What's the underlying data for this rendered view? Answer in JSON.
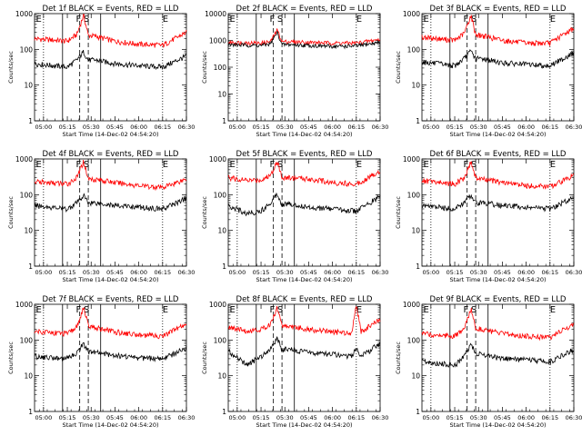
{
  "chart_data": [
    {
      "type": "line",
      "title": "Det 1f BLACK = Events, RED = LLD",
      "xlabel": "Start Time (14-Dec-02 04:54:20)",
      "ylabel": "Counts/sec",
      "yscale": "log",
      "ylim": [
        1,
        1000
      ],
      "yticklabels": [
        "1",
        "10",
        "100",
        "1000"
      ],
      "xticklabels": [
        "05:00",
        "05:15",
        "05:30",
        "05:45",
        "06:00",
        "06:15",
        "06:30"
      ],
      "markers": [
        "E",
        "F",
        "S",
        "E"
      ],
      "series": [
        {
          "key": "red",
          "color": "#ff0000",
          "x_hours": [
            4.906,
            5.25,
            5.35,
            5.42,
            5.47,
            5.55,
            5.75,
            6.0,
            6.25,
            6.5
          ],
          "y": [
            200,
            170,
            260,
            900,
            250,
            230,
            170,
            140,
            130,
            300
          ]
        },
        {
          "key": "black",
          "color": "#000000",
          "x_hours": [
            4.906,
            5.25,
            5.35,
            5.42,
            5.47,
            5.55,
            5.75,
            6.0,
            6.25,
            6.5
          ],
          "y": [
            40,
            32,
            50,
            85,
            50,
            50,
            40,
            35,
            32,
            65
          ]
        }
      ]
    },
    {
      "type": "line",
      "title": "Det 2f BLACK = Events, RED = LLD",
      "xlabel": "Start Time (14-Dec-02 04:54:20)",
      "ylabel": "Counts/sec",
      "yscale": "log",
      "ylim": [
        1,
        10000
      ],
      "yticklabels": [
        "1",
        "10",
        "100",
        "1000",
        "10000"
      ],
      "xticklabels": [
        "05:00",
        "05:15",
        "05:30",
        "05:45",
        "06:00",
        "06:15",
        "06:30"
      ],
      "markers": [
        "E",
        "F",
        "S",
        "E"
      ],
      "series": [
        {
          "key": "red",
          "color": "#ff0000",
          "x_hours": [
            4.906,
            5.25,
            5.35,
            5.42,
            5.47,
            5.55,
            5.75,
            6.0,
            6.25,
            6.5
          ],
          "y": [
            850,
            800,
            900,
            2500,
            900,
            900,
            850,
            800,
            800,
            1100
          ]
        },
        {
          "key": "black",
          "color": "#000000",
          "x_hours": [
            4.906,
            5.25,
            5.35,
            5.42,
            5.47,
            5.55,
            5.75,
            6.0,
            6.25,
            6.5
          ],
          "y": [
            700,
            650,
            750,
            2000,
            700,
            700,
            650,
            600,
            620,
            850
          ]
        }
      ]
    },
    {
      "type": "line",
      "title": "Det 3f BLACK = Events, RED = LLD",
      "xlabel": "Start Time (14-Dec-02 04:54:20)",
      "ylabel": "Counts/sec",
      "yscale": "log",
      "ylim": [
        1,
        1000
      ],
      "yticklabels": [
        "1",
        "10",
        "100",
        "1000"
      ],
      "xticklabels": [
        "05:00",
        "05:15",
        "05:30",
        "05:45",
        "06:00",
        "06:15",
        "06:30"
      ],
      "markers": [
        "E",
        "F",
        "S",
        "E"
      ],
      "series": [
        {
          "key": "red",
          "color": "#ff0000",
          "x_hours": [
            4.906,
            5.25,
            5.35,
            5.42,
            5.47,
            5.55,
            5.75,
            6.0,
            6.25,
            6.5
          ],
          "y": [
            220,
            180,
            280,
            900,
            260,
            240,
            180,
            150,
            150,
            400
          ]
        },
        {
          "key": "black",
          "color": "#000000",
          "x_hours": [
            4.906,
            5.25,
            5.35,
            5.42,
            5.47,
            5.55,
            5.75,
            6.0,
            6.25,
            6.5
          ],
          "y": [
            45,
            35,
            55,
            90,
            55,
            55,
            42,
            38,
            35,
            80
          ]
        }
      ]
    },
    {
      "type": "line",
      "title": "Det 4f BLACK = Events, RED = LLD",
      "xlabel": "Start Time (14-Dec-02 04:54:20)",
      "ylabel": "Counts/sec",
      "yscale": "log",
      "ylim": [
        1,
        1000
      ],
      "yticklabels": [
        "1",
        "10",
        "100",
        "1000"
      ],
      "xticklabels": [
        "05:00",
        "05:15",
        "05:30",
        "05:45",
        "06:00",
        "06:15",
        "06:30"
      ],
      "markers": [
        "E",
        "F",
        "S",
        "E"
      ],
      "series": [
        {
          "key": "red",
          "color": "#ff0000",
          "x_hours": [
            4.906,
            5.25,
            5.35,
            5.42,
            5.47,
            5.55,
            5.75,
            6.0,
            6.25,
            6.5
          ],
          "y": [
            230,
            200,
            300,
            850,
            280,
            270,
            220,
            180,
            160,
            280
          ]
        },
        {
          "key": "black",
          "color": "#000000",
          "x_hours": [
            4.906,
            5.25,
            5.35,
            5.42,
            5.47,
            5.55,
            5.75,
            6.0,
            6.25,
            6.5
          ],
          "y": [
            50,
            40,
            60,
            95,
            60,
            60,
            50,
            45,
            40,
            80
          ]
        }
      ]
    },
    {
      "type": "line",
      "title": "Det 5f BLACK = Events, RED = LLD",
      "xlabel": "Start Time (14-Dec-02 04:54:20)",
      "ylabel": "Counts/sec",
      "yscale": "log",
      "ylim": [
        1,
        1000
      ],
      "yticklabels": [
        "1",
        "10",
        "100",
        "1000"
      ],
      "xticklabels": [
        "05:00",
        "05:15",
        "05:30",
        "05:45",
        "06:00",
        "06:15",
        "06:30"
      ],
      "markers": [
        "E",
        "F",
        "S",
        "E"
      ],
      "series": [
        {
          "key": "red",
          "color": "#ff0000",
          "x_hours": [
            4.906,
            5.1,
            5.25,
            5.35,
            5.42,
            5.47,
            5.55,
            5.75,
            6.0,
            6.25,
            6.5
          ],
          "y": [
            300,
            250,
            260,
            350,
            900,
            300,
            300,
            280,
            220,
            200,
            450
          ]
        },
        {
          "key": "black",
          "color": "#000000",
          "x_hours": [
            4.906,
            5.1,
            5.25,
            5.35,
            5.42,
            5.47,
            5.55,
            5.75,
            6.0,
            6.25,
            6.5
          ],
          "y": [
            50,
            30,
            35,
            60,
            110,
            55,
            55,
            45,
            40,
            35,
            90
          ]
        }
      ]
    },
    {
      "type": "line",
      "title": "Det 6f BLACK = Events, RED = LLD",
      "xlabel": "Start Time (14-Dec-02 04:54:20)",
      "ylabel": "Counts/sec",
      "yscale": "log",
      "ylim": [
        1,
        1000
      ],
      "yticklabels": [
        "1",
        "10",
        "100",
        "1000"
      ],
      "xticklabels": [
        "05:00",
        "05:15",
        "05:30",
        "05:45",
        "06:00",
        "06:15",
        "06:30"
      ],
      "markers": [
        "E",
        "F",
        "S",
        "E"
      ],
      "series": [
        {
          "key": "red",
          "color": "#ff0000",
          "x_hours": [
            4.906,
            5.25,
            5.35,
            5.42,
            5.47,
            5.55,
            5.75,
            6.0,
            6.25,
            6.5
          ],
          "y": [
            250,
            200,
            300,
            850,
            290,
            270,
            220,
            180,
            170,
            350
          ]
        },
        {
          "key": "black",
          "color": "#000000",
          "x_hours": [
            4.906,
            5.25,
            5.35,
            5.42,
            5.47,
            5.55,
            5.75,
            6.0,
            6.25,
            6.5
          ],
          "y": [
            50,
            40,
            60,
            100,
            60,
            60,
            50,
            45,
            40,
            85
          ]
        }
      ]
    },
    {
      "type": "line",
      "title": "Det 7f BLACK = Events, RED = LLD",
      "xlabel": "Start Time (14-Dec-02 04:54:20)",
      "ylabel": "Counts/sec",
      "yscale": "log",
      "ylim": [
        1,
        1000
      ],
      "yticklabels": [
        "1",
        "10",
        "100",
        "1000"
      ],
      "xticklabels": [
        "05:00",
        "05:15",
        "05:30",
        "05:45",
        "06:00",
        "06:15",
        "06:30"
      ],
      "markers": [
        "E",
        "F",
        "S",
        "E"
      ],
      "series": [
        {
          "key": "red",
          "color": "#ff0000",
          "x_hours": [
            4.906,
            5.25,
            5.35,
            5.42,
            5.47,
            5.55,
            5.75,
            6.0,
            6.25,
            6.5
          ],
          "y": [
            180,
            150,
            230,
            800,
            250,
            220,
            170,
            140,
            130,
            280
          ]
        },
        {
          "key": "black",
          "color": "#000000",
          "x_hours": [
            4.906,
            5.25,
            5.35,
            5.42,
            5.47,
            5.55,
            5.75,
            6.0,
            6.25,
            6.5
          ],
          "y": [
            35,
            30,
            45,
            80,
            45,
            45,
            38,
            32,
            30,
            60
          ]
        }
      ]
    },
    {
      "type": "line",
      "title": "Det 8f BLACK = Events, RED = LLD",
      "xlabel": "Start Time (14-Dec-02 04:54:20)",
      "ylabel": "Counts/sec",
      "yscale": "log",
      "ylim": [
        1,
        1000
      ],
      "yticklabels": [
        "1",
        "10",
        "100",
        "1000"
      ],
      "xticklabels": [
        "05:00",
        "05:15",
        "05:30",
        "05:45",
        "06:00",
        "06:15",
        "06:30"
      ],
      "markers": [
        "E",
        "F",
        "S",
        "E"
      ],
      "series": [
        {
          "key": "red",
          "color": "#ff0000",
          "x_hours": [
            4.906,
            5.1,
            5.25,
            5.35,
            5.42,
            5.47,
            5.55,
            5.75,
            6.0,
            6.2,
            6.25,
            6.3,
            6.5
          ],
          "y": [
            220,
            180,
            200,
            280,
            800,
            260,
            240,
            200,
            170,
            160,
            1000,
            170,
            380
          ]
        },
        {
          "key": "black",
          "color": "#000000",
          "x_hours": [
            4.906,
            5.1,
            5.25,
            5.35,
            5.42,
            5.47,
            5.55,
            5.75,
            6.0,
            6.2,
            6.25,
            6.3,
            6.5
          ],
          "y": [
            50,
            20,
            35,
            60,
            110,
            55,
            55,
            45,
            40,
            35,
            60,
            35,
            80
          ]
        }
      ]
    },
    {
      "type": "line",
      "title": "Det 9f BLACK = Events, RED = LLD",
      "xlabel": "Start Time (14-Dec-02 04:54:20)",
      "ylabel": "Counts/sec",
      "yscale": "log",
      "ylim": [
        1,
        1000
      ],
      "yticklabels": [
        "1",
        "10",
        "100",
        "1000"
      ],
      "xticklabels": [
        "05:00",
        "05:15",
        "05:30",
        "05:45",
        "06:00",
        "06:15",
        "06:30"
      ],
      "markers": [
        "E",
        "F",
        "S",
        "E"
      ],
      "series": [
        {
          "key": "red",
          "color": "#ff0000",
          "x_hours": [
            4.906,
            5.25,
            5.35,
            5.42,
            5.47,
            5.55,
            5.75,
            6.0,
            6.25,
            6.5
          ],
          "y": [
            150,
            130,
            200,
            750,
            220,
            200,
            150,
            130,
            120,
            280
          ]
        },
        {
          "key": "black",
          "color": "#000000",
          "x_hours": [
            4.906,
            5.25,
            5.35,
            5.42,
            5.47,
            5.55,
            5.75,
            6.0,
            6.25,
            6.5
          ],
          "y": [
            25,
            20,
            35,
            80,
            40,
            40,
            30,
            28,
            25,
            55
          ]
        }
      ]
    }
  ]
}
